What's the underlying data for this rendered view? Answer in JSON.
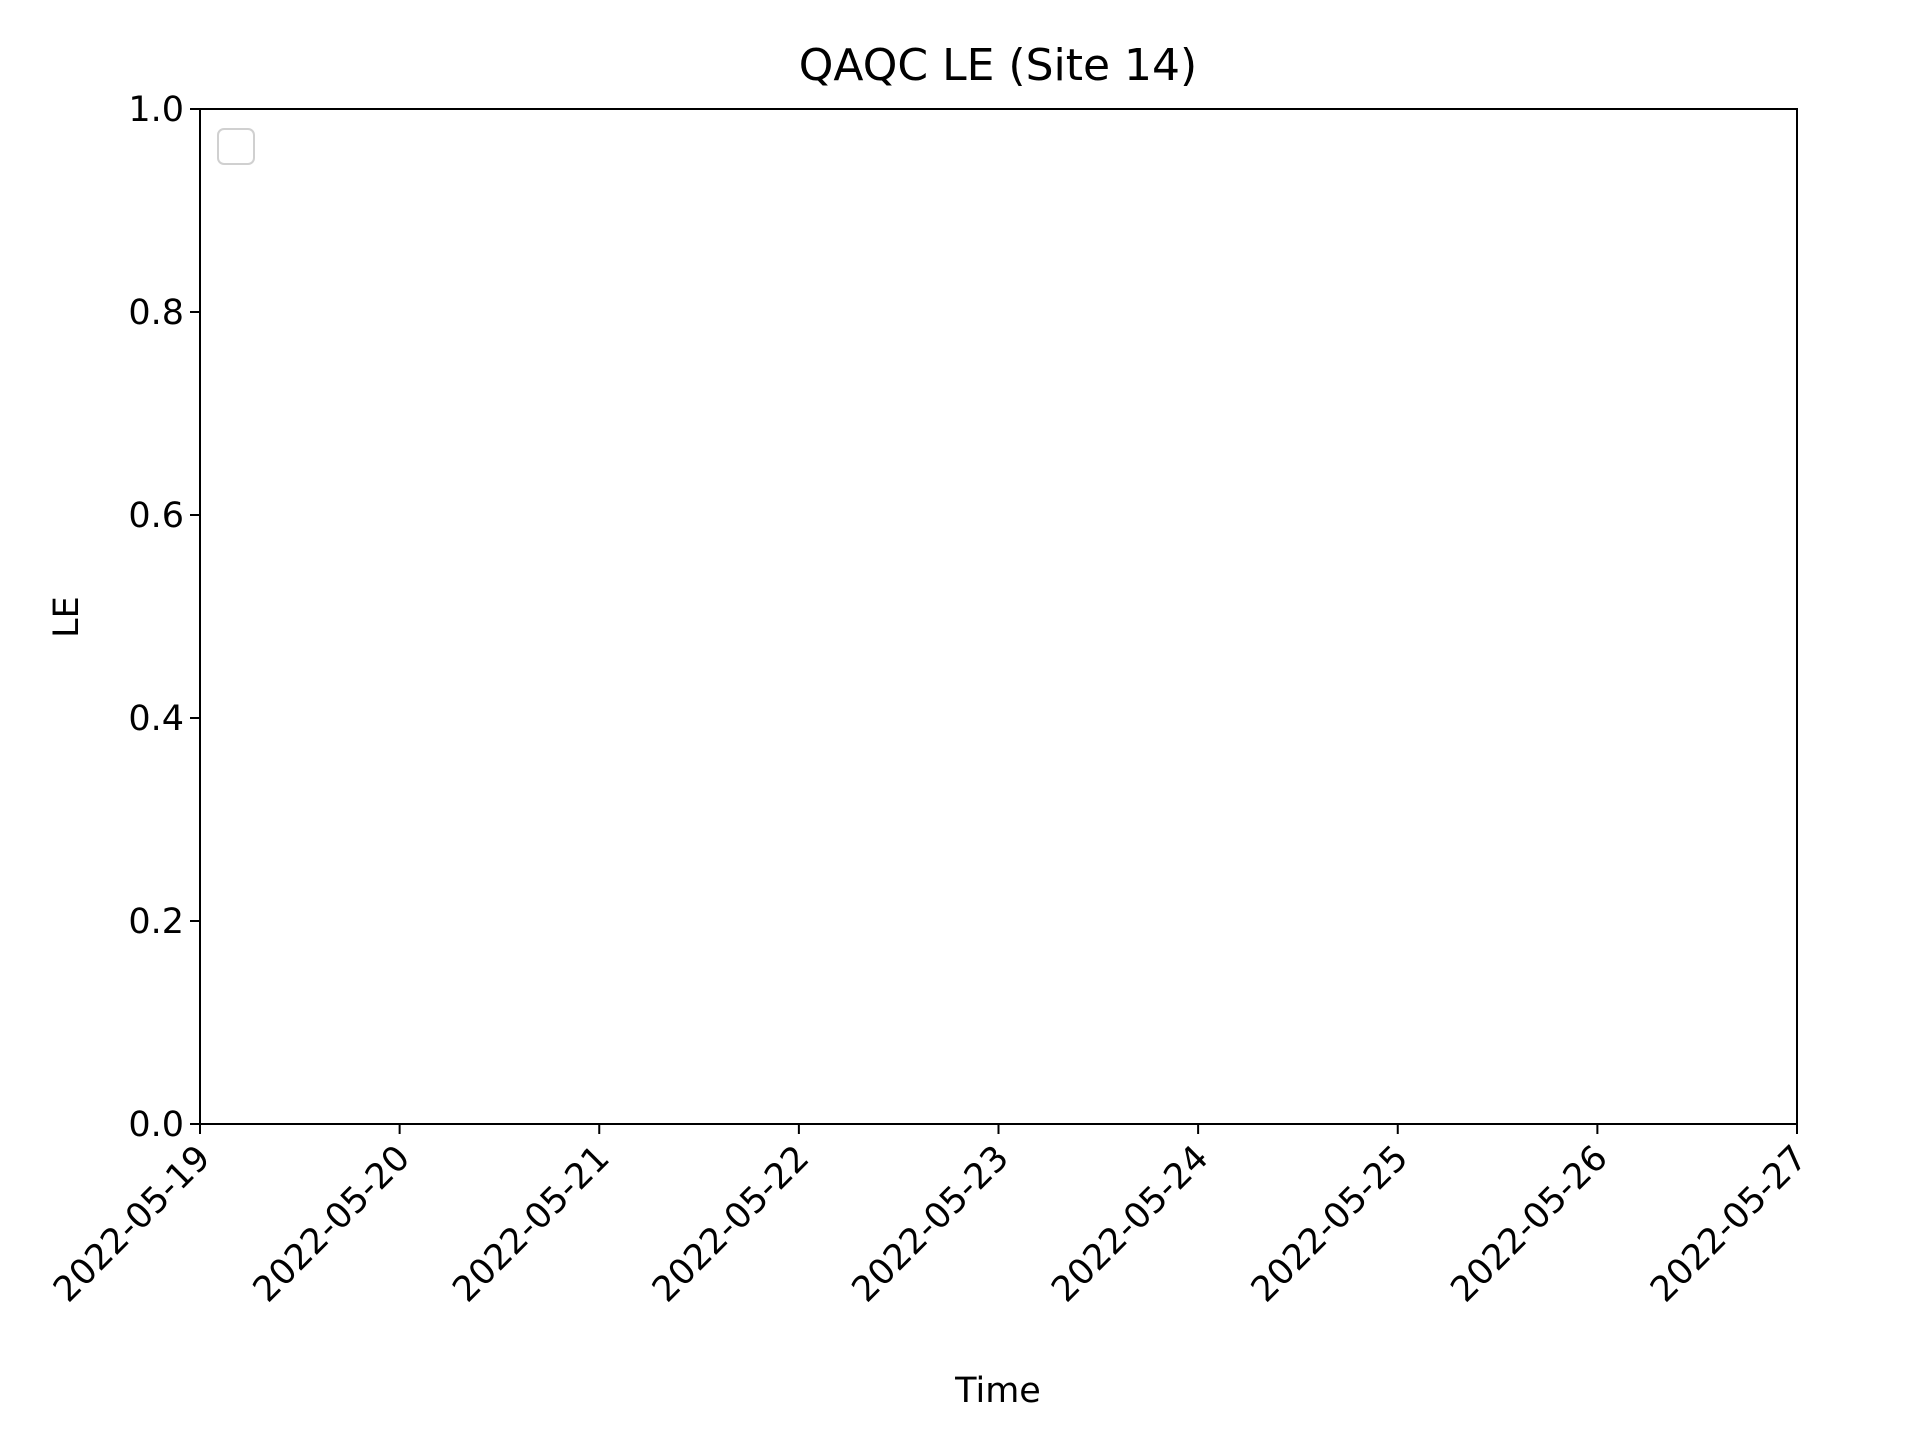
{
  "chart_data": {
    "type": "line",
    "title": "QAQC LE (Site 14)",
    "xlabel": "Time",
    "ylabel": "LE",
    "series": [],
    "xlim": [
      "2022-05-19",
      "2022-05-27"
    ],
    "xticks": [
      "2022-05-19",
      "2022-05-20",
      "2022-05-21",
      "2022-05-22",
      "2022-05-23",
      "2022-05-24",
      "2022-05-25",
      "2022-05-26",
      "2022-05-27"
    ],
    "ylim": [
      0,
      1
    ],
    "yticks": [
      {
        "value": 0,
        "label": "0.0"
      },
      0.2,
      0.4,
      0.6,
      0.8,
      {
        "value": 1,
        "label": "1.0"
      }
    ],
    "legend": "upper left"
  }
}
